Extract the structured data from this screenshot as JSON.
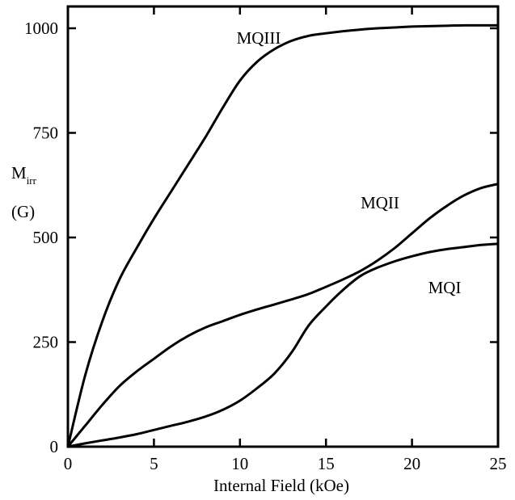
{
  "chart_data": {
    "type": "line",
    "xlabel": "Internal Field (kOe)",
    "ylabel_main": "M",
    "ylabel_sub": "irr",
    "ylabel_unit": "(G)",
    "xlim": [
      0,
      25
    ],
    "ylim": [
      0,
      1050
    ],
    "xticks": [
      0,
      5,
      10,
      15,
      20,
      25
    ],
    "yticks": [
      0,
      250,
      500,
      750,
      1000
    ],
    "grid": false,
    "series": [
      {
        "name": "MQIII",
        "x": [
          0,
          1,
          2,
          3,
          4,
          5,
          6,
          7,
          8,
          9,
          10,
          11,
          12,
          13,
          14,
          15,
          16,
          17,
          18,
          19,
          20,
          21,
          22,
          23,
          24,
          25
        ],
        "values": [
          0,
          170,
          300,
          400,
          475,
          545,
          610,
          675,
          740,
          810,
          875,
          920,
          950,
          970,
          982,
          988,
          993,
          997,
          1000,
          1002,
          1004,
          1005,
          1006,
          1007,
          1007,
          1007
        ]
      },
      {
        "name": "MQII",
        "x": [
          0,
          1,
          2,
          3,
          4,
          5,
          6,
          7,
          8,
          9,
          10,
          11,
          12,
          13,
          14,
          15,
          16,
          17,
          18,
          19,
          20,
          21,
          22,
          23,
          24,
          25
        ],
        "values": [
          0,
          50,
          100,
          145,
          180,
          210,
          240,
          265,
          285,
          300,
          315,
          328,
          340,
          352,
          365,
          382,
          400,
          420,
          445,
          475,
          510,
          545,
          575,
          600,
          618,
          628
        ]
      },
      {
        "name": "MQI",
        "x": [
          0,
          1,
          2,
          3,
          4,
          5,
          6,
          7,
          8,
          9,
          10,
          11,
          12,
          13,
          14,
          15,
          16,
          17,
          18,
          19,
          20,
          21,
          22,
          23,
          24,
          25
        ],
        "values": [
          0,
          8,
          15,
          22,
          30,
          40,
          50,
          60,
          72,
          88,
          110,
          140,
          175,
          225,
          290,
          335,
          375,
          408,
          428,
          443,
          455,
          465,
          472,
          477,
          482,
          485
        ]
      }
    ]
  }
}
